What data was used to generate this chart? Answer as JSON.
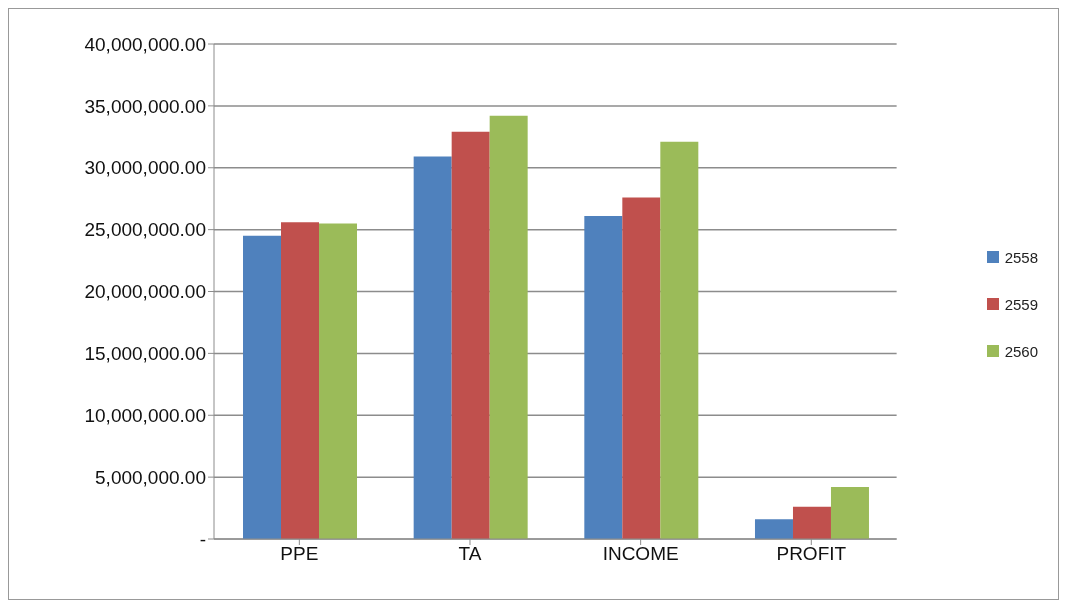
{
  "chart_data": {
    "type": "bar",
    "categories": [
      "PPE",
      "TA",
      "INCOME",
      "PROFIT"
    ],
    "series": [
      {
        "name": "2558",
        "color": "#4f81bd",
        "values": [
          24500000,
          30900000,
          26100000,
          1600000
        ]
      },
      {
        "name": "2559",
        "color": "#c0504d",
        "values": [
          25600000,
          32900000,
          27600000,
          2600000
        ]
      },
      {
        "name": "2560",
        "color": "#9bbb59",
        "values": [
          25500000,
          34200000,
          32100000,
          4200000
        ]
      }
    ],
    "ylim": [
      0,
      40000000
    ],
    "yticks": [
      {
        "value": 0,
        "label": "-"
      },
      {
        "value": 5000000,
        "label": "5,000,000.00"
      },
      {
        "value": 10000000,
        "label": "10,000,000.00"
      },
      {
        "value": 15000000,
        "label": "15,000,000.00"
      },
      {
        "value": 20000000,
        "label": "20,000,000.00"
      },
      {
        "value": 25000000,
        "label": "25,000,000.00"
      },
      {
        "value": 30000000,
        "label": "30,000,000.00"
      },
      {
        "value": 35000000,
        "label": "35,000,000.00"
      },
      {
        "value": 40000000,
        "label": "40,000,000.00"
      }
    ],
    "grid": "y",
    "legend": "right"
  }
}
